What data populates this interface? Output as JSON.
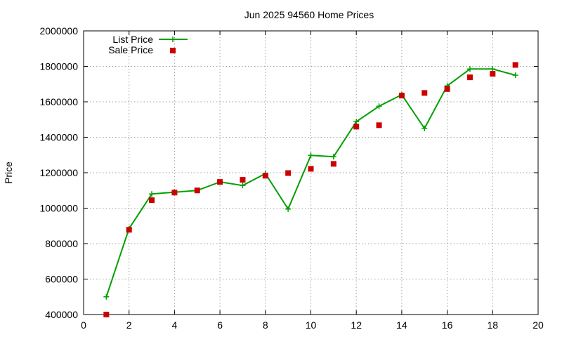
{
  "chart_data": {
    "type": "line",
    "title": "Jun 2025 94560 Home Prices",
    "xlabel": "",
    "ylabel": "Price",
    "xlim": [
      0,
      20
    ],
    "ylim": [
      400000,
      2000000
    ],
    "x_ticks": [
      0,
      2,
      4,
      6,
      8,
      10,
      12,
      14,
      16,
      18,
      20
    ],
    "y_ticks": [
      400000,
      600000,
      800000,
      1000000,
      1200000,
      1400000,
      1600000,
      1800000,
      2000000
    ],
    "grid": true,
    "legend_position": "top-left",
    "series": [
      {
        "name": "List Price",
        "style": "line+cross",
        "color": "#00a000",
        "x": [
          1,
          2,
          3,
          4,
          5,
          6,
          7,
          8,
          9,
          10,
          11,
          12,
          13,
          14,
          15,
          16,
          17,
          18,
          19
        ],
        "y": [
          500000,
          885000,
          1080000,
          1090000,
          1100000,
          1148000,
          1128000,
          1195000,
          995000,
          1298000,
          1290000,
          1488000,
          1575000,
          1640000,
          1450000,
          1690000,
          1785000,
          1785000,
          1750000
        ]
      },
      {
        "name": "Sale Price",
        "style": "square",
        "color": "#cc0000",
        "x": [
          1,
          2,
          3,
          4,
          5,
          6,
          7,
          8,
          9,
          10,
          11,
          12,
          13,
          14,
          15,
          16,
          17,
          18,
          19
        ],
        "y": [
          400000,
          878000,
          1045000,
          1088000,
          1100000,
          1148000,
          1160000,
          1183000,
          1198000,
          1222000,
          1250000,
          1460000,
          1468000,
          1635000,
          1650000,
          1672000,
          1738000,
          1758000,
          1808000
        ]
      }
    ]
  }
}
